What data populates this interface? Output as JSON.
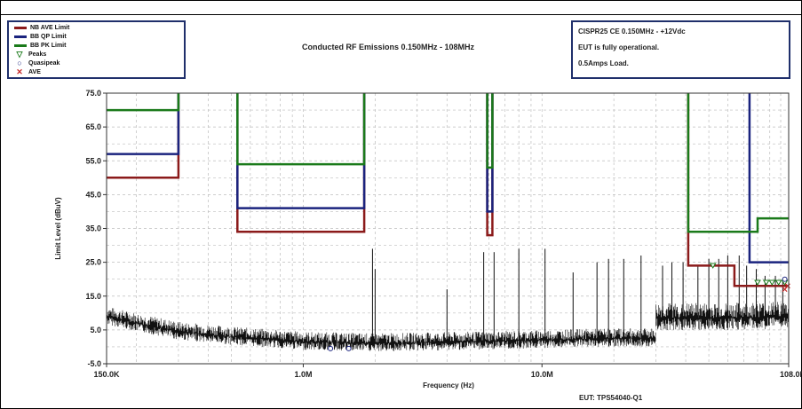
{
  "chart_data": {
    "type": "line",
    "title": "Conducted RF Emissions 0.150MHz - 108MHz",
    "xlabel": "Frequency (Hz)",
    "ylabel": "Limit Level (dBuV)",
    "x_scale": "log",
    "xlim": [
      150000,
      108000000
    ],
    "ylim": [
      -5,
      75
    ],
    "x_ticks": [
      {
        "value": 150000,
        "label": "150.0K"
      },
      {
        "value": 1000000,
        "label": "1.0M"
      },
      {
        "value": 10000000,
        "label": "10.0M"
      },
      {
        "value": 108000000,
        "label": "108.0M"
      }
    ],
    "y_ticks": [
      {
        "value": 75,
        "label": "75.0"
      },
      {
        "value": 65,
        "label": "65.0"
      },
      {
        "value": 55,
        "label": "55.0"
      },
      {
        "value": 45,
        "label": "45.0"
      },
      {
        "value": 35,
        "label": "35.0"
      },
      {
        "value": 25,
        "label": "25.0"
      },
      {
        "value": 15,
        "label": "15.0"
      },
      {
        "value": 5,
        "label": "5.0"
      },
      {
        "value": -5,
        "label": "-5.0"
      }
    ],
    "grid": true,
    "legend_position": "top-left",
    "series": [
      {
        "name": "NB AVE Limit",
        "color": "#8b1a1a",
        "segments": [
          [
            [
              150000,
              50
            ],
            [
              300000,
              50
            ],
            [
              300000,
              75
            ]
          ],
          [
            [
              530000,
              75
            ],
            [
              530000,
              34
            ],
            [
              1800000,
              34
            ],
            [
              1800000,
              75
            ]
          ],
          [
            [
              5900000,
              75
            ],
            [
              5900000,
              33
            ],
            [
              6200000,
              33
            ],
            [
              6200000,
              75
            ]
          ],
          [
            [
              41000000,
              75
            ],
            [
              41000000,
              24
            ],
            [
              64000000,
              24
            ],
            [
              64000000,
              18
            ],
            [
              108000000,
              18
            ]
          ]
        ]
      },
      {
        "name": "BB QP Limit",
        "color": "#1a237e",
        "segments": [
          [
            [
              150000,
              57
            ],
            [
              300000,
              57
            ],
            [
              300000,
              75
            ]
          ],
          [
            [
              530000,
              75
            ],
            [
              530000,
              41
            ],
            [
              1800000,
              41
            ],
            [
              1800000,
              75
            ]
          ],
          [
            [
              5900000,
              75
            ],
            [
              5900000,
              40
            ],
            [
              6200000,
              40
            ],
            [
              6200000,
              75
            ]
          ],
          [
            [
              74000000,
              75
            ],
            [
              74000000,
              25
            ],
            [
              108000000,
              25
            ]
          ]
        ]
      },
      {
        "name": "BB PK Limit",
        "color": "#1a7a1a",
        "segments": [
          [
            [
              150000,
              70
            ],
            [
              300000,
              70
            ],
            [
              300000,
              75
            ]
          ],
          [
            [
              530000,
              75
            ],
            [
              530000,
              54
            ],
            [
              1800000,
              54
            ],
            [
              1800000,
              75
            ]
          ],
          [
            [
              5900000,
              75
            ],
            [
              5900000,
              53
            ],
            [
              6200000,
              53
            ],
            [
              6200000,
              75
            ]
          ],
          [
            [
              41000000,
              75
            ],
            [
              41000000,
              34
            ],
            [
              80000000,
              34
            ],
            [
              80000000,
              38
            ],
            [
              108000000,
              38
            ]
          ]
        ]
      }
    ],
    "markers": [
      {
        "name": "Peaks",
        "symbol": "triangle-down",
        "color": "#1a7a1a",
        "points": [
          [
            52000000,
            24
          ],
          [
            80000000,
            19
          ],
          [
            87000000,
            19
          ],
          [
            92000000,
            19
          ],
          [
            98000000,
            19
          ],
          [
            104000000,
            19
          ]
        ]
      },
      {
        "name": "Quasipeak",
        "symbol": "circle",
        "color": "#1a237e",
        "points": [
          [
            1300000,
            -0.5
          ],
          [
            1550000,
            -0.5
          ],
          [
            104000000,
            20
          ]
        ]
      },
      {
        "name": "AVE",
        "symbol": "x",
        "color": "#c62828",
        "points": [
          [
            104000000,
            17
          ],
          [
            107000000,
            18
          ]
        ]
      }
    ],
    "emission_trace": {
      "color": "#111111",
      "baseline": [
        [
          150000,
          9
        ],
        [
          200000,
          7
        ],
        [
          300000,
          4.5
        ],
        [
          500000,
          3
        ],
        [
          1000000,
          1.5
        ],
        [
          2000000,
          1
        ],
        [
          5000000,
          1.5
        ],
        [
          20000000,
          2.5
        ],
        [
          30000000,
          2.5
        ],
        [
          30000000,
          8.5
        ],
        [
          60000000,
          8.5
        ],
        [
          108000000,
          9
        ]
      ],
      "spurs": [
        [
          1950000,
          29
        ],
        [
          2000000,
          23
        ],
        [
          4000000,
          17
        ],
        [
          5700000,
          28
        ],
        [
          6300000,
          28
        ],
        [
          8000000,
          29
        ],
        [
          10300000,
          29
        ],
        [
          13500000,
          22
        ],
        [
          17000000,
          25
        ],
        [
          19000000,
          26
        ],
        [
          22000000,
          26
        ],
        [
          26000000,
          27
        ],
        [
          32000000,
          24
        ],
        [
          35000000,
          25
        ],
        [
          39000000,
          25
        ],
        [
          45000000,
          24
        ],
        [
          50000000,
          26
        ],
        [
          55000000,
          26
        ],
        [
          60000000,
          27
        ],
        [
          67000000,
          27
        ],
        [
          72000000,
          24
        ],
        [
          79000000,
          23
        ],
        [
          86000000,
          21
        ],
        [
          95000000,
          21
        ],
        [
          102000000,
          20
        ]
      ]
    }
  },
  "info": {
    "line1": "CISPR25 CE 0.150MHz - +12Vdc",
    "line2": "EUT is fully operational.",
    "line3": "0.5Amps Load."
  },
  "footer": {
    "eut": "EUT: TPS54040-Q1"
  },
  "legend": {
    "items": [
      {
        "label": "NB AVE Limit",
        "kind": "line",
        "color": "#8b1a1a"
      },
      {
        "label": "BB QP Limit",
        "kind": "line",
        "color": "#1a237e"
      },
      {
        "label": "BB PK Limit",
        "kind": "line",
        "color": "#1a7a1a"
      },
      {
        "label": "Peaks",
        "kind": "symbol",
        "symbol": "▽",
        "color": "#1a7a1a"
      },
      {
        "label": "Quasipeak",
        "kind": "symbol",
        "symbol": "○",
        "color": "#1a237e"
      },
      {
        "label": "AVE",
        "kind": "symbol",
        "symbol": "✕",
        "color": "#c62828"
      }
    ]
  }
}
